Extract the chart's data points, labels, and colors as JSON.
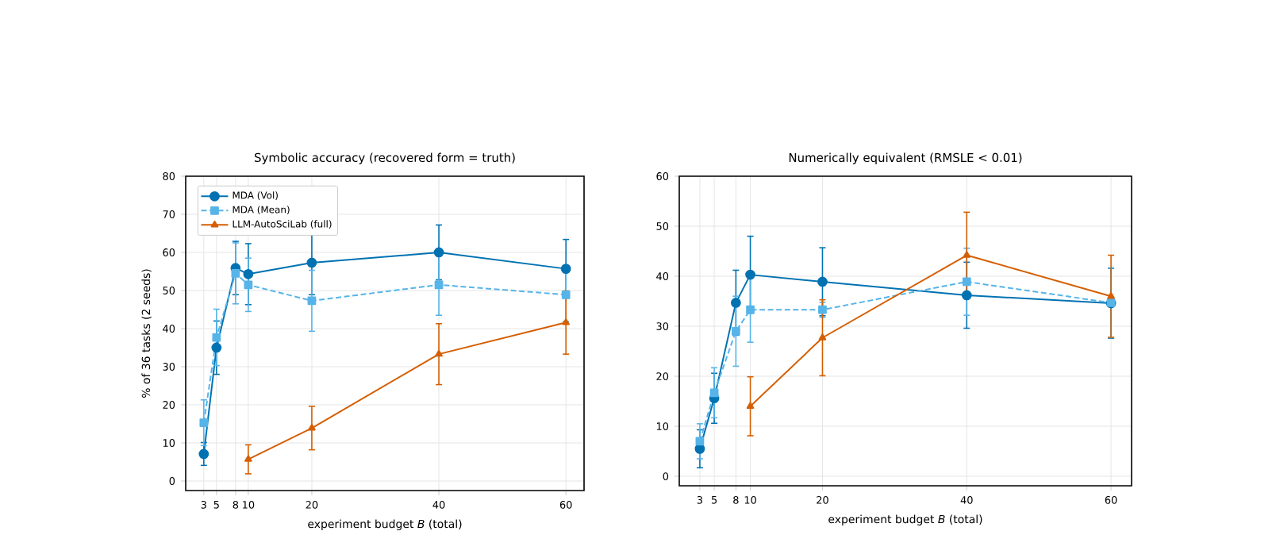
{
  "chart_data": [
    {
      "type": "line",
      "title": "Symbolic accuracy (recovered form = truth)",
      "xlabel": "experiment budget *B* (total)",
      "ylabel": "% of 36 tasks (2 seeds)",
      "x": [
        3,
        5,
        8,
        10,
        20,
        40,
        60
      ],
      "xlim": [
        0.15,
        62.85
      ],
      "xticks": [
        3,
        5,
        8,
        10,
        20,
        40,
        60
      ],
      "ylim": [
        -2.5,
        80
      ],
      "yticks": [
        0,
        10,
        20,
        30,
        40,
        50,
        60,
        70,
        80
      ],
      "grid": true,
      "legend": "top left",
      "series": [
        {
          "name": "MDA (Vol)",
          "color": "#0072b2",
          "marker": "circle",
          "line_style": "solid",
          "values": [
            7.1,
            35.0,
            55.9,
            54.3,
            57.3,
            60.0,
            55.7
          ],
          "errors": [
            3.0,
            7.0,
            7.0,
            8.0,
            8.4,
            7.2,
            7.7
          ]
        },
        {
          "name": "MDA (Mean)",
          "color": "#56b4e9",
          "marker": "square",
          "line_style": "dashed",
          "values": [
            15.3,
            37.7,
            54.5,
            51.5,
            47.3,
            51.5,
            48.9
          ],
          "errors": [
            6.0,
            7.4,
            8.0,
            7.0,
            8.0,
            8.0,
            7.0
          ]
        },
        {
          "name": "LLM-AutoSciLab (full)",
          "color": "#d55e00",
          "marker": "triangle",
          "line_style": "solid",
          "values": [
            null,
            null,
            null,
            5.7,
            13.9,
            33.3,
            41.6
          ],
          "errors": [
            null,
            null,
            null,
            3.8,
            5.7,
            8.0,
            8.3
          ]
        }
      ]
    },
    {
      "type": "line",
      "title": "Numerically equivalent (RMSLE < 0.01)",
      "xlabel": "experiment budget *B* (total)",
      "x": [
        3,
        5,
        8,
        10,
        20,
        40,
        60
      ],
      "xlim": [
        0.15,
        62.85
      ],
      "xticks": [
        3,
        5,
        8,
        10,
        20,
        40,
        60
      ],
      "ylim": [
        -1.9,
        60
      ],
      "yticks": [
        0,
        10,
        20,
        30,
        40,
        50,
        60
      ],
      "grid": true,
      "series": [
        {
          "color": "#0072b2",
          "marker": "circle",
          "line_style": "solid",
          "values": [
            5.5,
            15.6,
            34.7,
            40.3,
            38.9,
            36.2,
            34.6
          ],
          "errors": [
            3.8,
            5.0,
            6.5,
            7.7,
            6.8,
            6.6,
            7.0
          ]
        },
        {
          "color": "#56b4e9",
          "marker": "square",
          "line_style": "dashed",
          "values": [
            7.0,
            16.7,
            29.0,
            33.3,
            33.3,
            38.9,
            34.7
          ],
          "errors": [
            3.5,
            5.0,
            7.0,
            6.5,
            1.5,
            6.7,
            7.0
          ]
        },
        {
          "color": "#d55e00",
          "marker": "triangle",
          "line_style": "solid",
          "values": [
            null,
            null,
            null,
            14.0,
            27.7,
            44.2,
            36.0
          ],
          "errors": [
            null,
            null,
            null,
            5.9,
            7.6,
            8.6,
            8.2
          ]
        }
      ]
    }
  ]
}
